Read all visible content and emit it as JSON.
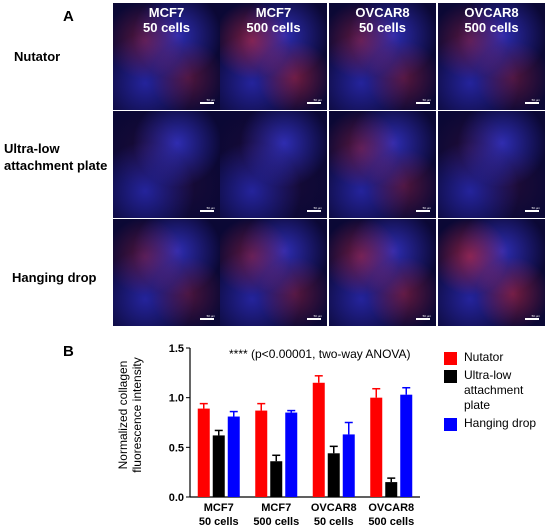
{
  "panel_a": {
    "letter": "A",
    "rows": [
      "Nutator",
      "Ultra-low attachment plate",
      "Hanging drop"
    ],
    "columns": [
      {
        "line1": "MCF7",
        "line2": "50 cells"
      },
      {
        "line1": "MCF7",
        "line2": "500 cells"
      },
      {
        "line1": "OVCAR8",
        "line2": "50 cells"
      },
      {
        "line1": "OVCAR8",
        "line2": "500 cells"
      }
    ],
    "scale_label": "50 µm",
    "colors": {
      "nuclei": "#2a2acc",
      "collagen": "#d8304a",
      "background": "#0b0835"
    }
  },
  "panel_b": {
    "letter": "B",
    "annotation": "****   (p<0.00001, two-way ANOVA)",
    "legend": [
      "Nutator",
      "Ultra-low attachment plate",
      "Hanging drop"
    ]
  },
  "chart_data": {
    "type": "bar",
    "ylabel": "Normalized collagen fluorescence intensity",
    "ylim": [
      0.0,
      1.5
    ],
    "yticks": [
      "0.0",
      "0.5",
      "1.0",
      "1.5"
    ],
    "categories": [
      {
        "line1": "MCF7",
        "line2": "50 cells"
      },
      {
        "line1": "MCF7",
        "line2": "500 cells"
      },
      {
        "line1": "OVCAR8",
        "line2": "50 cells"
      },
      {
        "line1": "OVCAR8",
        "line2": "500 cells"
      }
    ],
    "series": [
      {
        "name": "Nutator",
        "color": "#ff0000",
        "values": [
          0.89,
          0.87,
          1.15,
          1.0
        ],
        "errors": [
          0.05,
          0.07,
          0.07,
          0.09
        ]
      },
      {
        "name": "Ultra-low attachment plate",
        "color": "#000000",
        "values": [
          0.62,
          0.36,
          0.44,
          0.15
        ],
        "errors": [
          0.05,
          0.06,
          0.07,
          0.04
        ]
      },
      {
        "name": "Hanging drop",
        "color": "#0000ff",
        "values": [
          0.81,
          0.85,
          0.63,
          1.03
        ],
        "errors": [
          0.05,
          0.02,
          0.12,
          0.07
        ]
      }
    ]
  }
}
